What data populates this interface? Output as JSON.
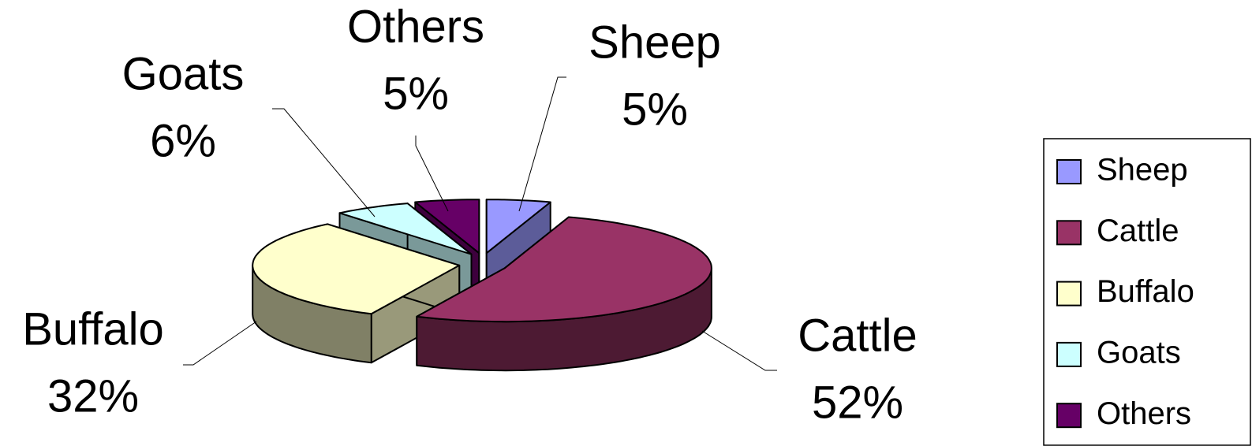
{
  "chart_data": {
    "type": "pie",
    "three_d": true,
    "exploded": true,
    "categories": [
      "Sheep",
      "Cattle",
      "Buffalo",
      "Goats",
      "Others"
    ],
    "values": [
      5,
      52,
      32,
      6,
      5
    ],
    "value_labels": [
      "5%",
      "52%",
      "32%",
      "6%",
      "5%"
    ],
    "colors": [
      "#9999ff",
      "#993366",
      "#ffffcc",
      "#ccffff",
      "#660066"
    ],
    "legend": "right"
  }
}
